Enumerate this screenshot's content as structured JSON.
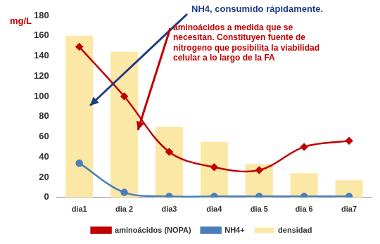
{
  "chart_data": {
    "type": "bar",
    "y_label": "mg/L",
    "categories": [
      "dia1",
      "dia 2",
      "dia3",
      "dia4",
      "dia 5",
      "dia 6",
      "dia7"
    ],
    "series": [
      {
        "name": "densidad",
        "type": "bar",
        "color": "#fce8a6",
        "values": [
          160,
          144,
          70,
          55,
          33,
          24,
          17
        ]
      },
      {
        "name": "aminoácidos (NOPA)",
        "type": "line",
        "color": "#c00000",
        "marker": "diamond",
        "values": [
          149,
          100,
          45,
          30,
          27,
          50,
          56
        ]
      },
      {
        "name": "NH4+",
        "type": "line",
        "color": "#4a7ebb",
        "marker": "circle",
        "values": [
          34,
          5,
          1,
          1,
          1,
          1,
          1
        ]
      }
    ],
    "ylim": [
      0,
      180
    ],
    "yticks": [
      0,
      20,
      40,
      60,
      80,
      100,
      120,
      140,
      160,
      180
    ],
    "grid": false,
    "legend": "bottom",
    "annotations": [
      {
        "text": [
          "NH4, consumido rápidamente."
        ],
        "color": "#1f3c88"
      },
      {
        "text": [
          "aminoácidos  a medida que se",
          "necesitan. Constituyen fuente de",
          "nitrogeno  que posibilita la viabilidad",
          "celular a lo largo de la FA"
        ],
        "color": "#c00000"
      }
    ]
  }
}
